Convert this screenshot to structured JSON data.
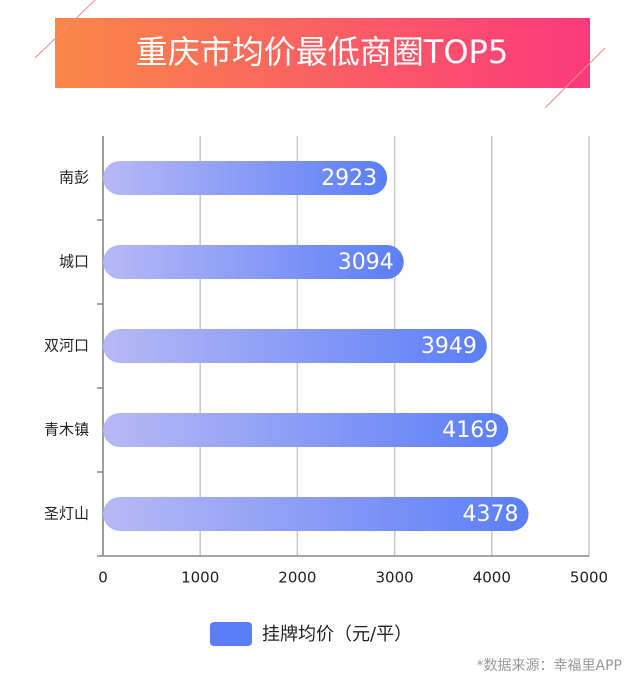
{
  "chart_data": {
    "type": "bar",
    "title": "重庆市均价最低商圈TOP5",
    "categories": [
      "南彭",
      "城口",
      "双河口",
      "青木镇",
      "圣灯山"
    ],
    "series": [
      {
        "name": "挂牌均价（元/平）",
        "color": "#5b7ef8",
        "values": [
          2923,
          3094,
          3949,
          4169,
          4378
        ]
      }
    ],
    "xlim": [
      0,
      5000
    ],
    "xticks": [
      0,
      1000,
      2000,
      3000,
      4000,
      5000
    ],
    "grid": true,
    "source": "*数据来源：幸福里APP"
  }
}
